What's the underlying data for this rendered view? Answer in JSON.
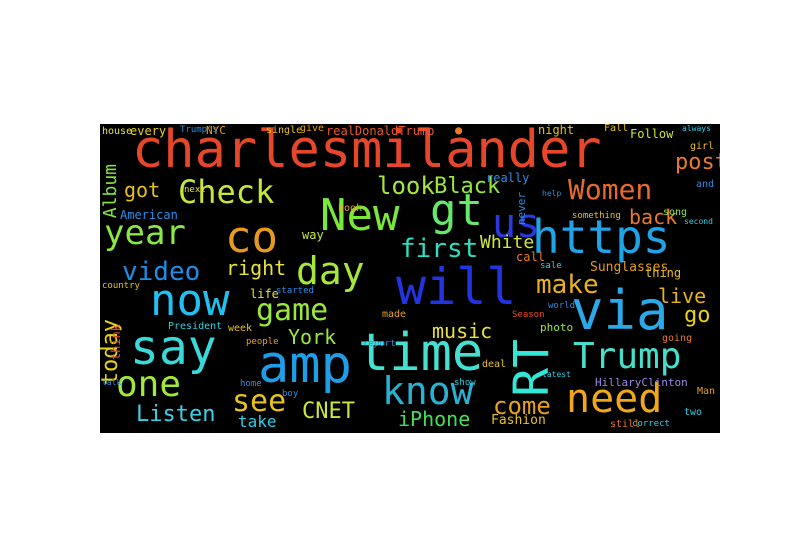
{
  "wordcloud": {
    "words": [
      {
        "text": "charlesmilander",
        "color": "#e8462a"
      },
      {
        "text": "https",
        "color": "#1fa4e8"
      },
      {
        "text": "amp",
        "color": "#1f9ee8"
      },
      {
        "text": "time",
        "color": "#44e0d0"
      },
      {
        "text": "will",
        "color": "#2233e0"
      },
      {
        "text": "via",
        "color": "#2aa8e8"
      },
      {
        "text": "say",
        "color": "#3ad8d8"
      },
      {
        "text": "now",
        "color": "#22c0f0"
      },
      {
        "text": "New",
        "color": "#7ae83a"
      },
      {
        "text": "RT",
        "color": "#33e6d6"
      },
      {
        "text": "co",
        "color": "#e89a1f"
      },
      {
        "text": "gt",
        "color": "#66e86a"
      },
      {
        "text": "need",
        "color": "#f0a81a"
      },
      {
        "text": "Trump",
        "color": "#44e0cc"
      },
      {
        "text": "know",
        "color": "#2ab0d0"
      },
      {
        "text": "day",
        "color": "#a6e83a"
      },
      {
        "text": "one",
        "color": "#a0e83a"
      },
      {
        "text": "year",
        "color": "#88e844"
      },
      {
        "text": "Check",
        "color": "#c2e83a"
      },
      {
        "text": "Women",
        "color": "#e86a2a"
      },
      {
        "text": "game",
        "color": "#9ae83a"
      },
      {
        "text": "video",
        "color": "#1f8ee8"
      },
      {
        "text": "first",
        "color": "#2ae0c0"
      },
      {
        "text": "make",
        "color": "#e8b21a"
      },
      {
        "text": "us",
        "color": "#2a3ae0"
      },
      {
        "text": "see",
        "color": "#e8c21a"
      },
      {
        "text": "look",
        "color": "#a8e83a"
      },
      {
        "text": "Black",
        "color": "#98e83a"
      },
      {
        "text": "come",
        "color": "#e8a01a"
      },
      {
        "text": "Listen",
        "color": "#3ad0e8"
      },
      {
        "text": "CNET",
        "color": "#c8e83a"
      },
      {
        "text": "iPhone",
        "color": "#44e05a"
      },
      {
        "text": "post",
        "color": "#e87a2a"
      },
      {
        "text": "back",
        "color": "#e87a2a"
      },
      {
        "text": "live",
        "color": "#e8b21a"
      },
      {
        "text": "right",
        "color": "#e8e23a"
      },
      {
        "text": "music",
        "color": "#e8e23a"
      },
      {
        "text": "York",
        "color": "#9ae83a"
      },
      {
        "text": "White",
        "color": "#d0e83a"
      },
      {
        "text": "got",
        "color": "#e8c21a"
      },
      {
        "text": "today",
        "color": "#e8d21a"
      },
      {
        "text": "Album",
        "color": "#88e844"
      },
      {
        "text": "go",
        "color": "#e8d21a"
      },
      {
        "text": "take",
        "color": "#2ad0e8"
      },
      {
        "text": "Sunglasses",
        "color": "#e89a1a"
      },
      {
        "text": "Fashion",
        "color": "#e8c21a"
      },
      {
        "text": "HillaryClinton",
        "color": "#9a8ae8"
      },
      {
        "text": "realDonaldTrump",
        "color": "#e85a2a"
      },
      {
        "text": "NYC",
        "color": "#e8a01a"
      },
      {
        "text": "every",
        "color": "#e8d21a"
      },
      {
        "text": "Follow",
        "color": "#c8e83a"
      },
      {
        "text": "night",
        "color": "#e8c21a"
      },
      {
        "text": "really",
        "color": "#2a8ee8"
      },
      {
        "text": "American",
        "color": "#2a8ee8"
      },
      {
        "text": "thing",
        "color": "#e8c21a"
      },
      {
        "text": "life",
        "color": "#e8e23a"
      },
      {
        "text": "President",
        "color": "#2ad0e8"
      },
      {
        "text": "week",
        "color": "#e8c21a"
      },
      {
        "text": "think",
        "color": "#e84a2a"
      },
      {
        "text": "way",
        "color": "#c8e83a"
      },
      {
        "text": "made",
        "color": "#e8a01a"
      },
      {
        "text": "people",
        "color": "#e8a01a"
      },
      {
        "text": "call",
        "color": "#e87a2a"
      },
      {
        "text": "book",
        "color": "#e8a01a"
      },
      {
        "text": "never",
        "color": "#2a8ee8"
      },
      {
        "text": "deal",
        "color": "#e8c21a"
      },
      {
        "text": "photo",
        "color": "#9ae83a"
      },
      {
        "text": "Man",
        "color": "#e8a01a"
      },
      {
        "text": "two",
        "color": "#2ad0e8"
      },
      {
        "text": "going",
        "color": "#e87a2a"
      },
      {
        "text": "sale",
        "color": "#2ad0e8"
      },
      {
        "text": "song",
        "color": "#88e844"
      },
      {
        "text": "world",
        "color": "#2a8ee8"
      },
      {
        "text": "girl",
        "color": "#e8c21a"
      },
      {
        "text": "home",
        "color": "#2a8ee8"
      },
      {
        "text": "boy",
        "color": "#2a8ee8"
      },
      {
        "text": "Season",
        "color": "#e84a2a"
      },
      {
        "text": "report",
        "color": "#2a8ee8"
      },
      {
        "text": "single",
        "color": "#e8c21a"
      },
      {
        "text": "give",
        "color": "#e8a01a"
      },
      {
        "text": "house",
        "color": "#e8e23a"
      },
      {
        "text": "always",
        "color": "#2ad0e8"
      },
      {
        "text": "Fall",
        "color": "#e8c21a"
      },
      {
        "text": "Trump's",
        "color": "#2a8ee8"
      },
      {
        "text": "second",
        "color": "#2ad0e8"
      },
      {
        "text": "country",
        "color": "#e8c21a"
      },
      {
        "text": "next",
        "color": "#e8e23a"
      },
      {
        "text": "started",
        "color": "#2a8ee8"
      },
      {
        "text": "talk",
        "color": "#2a8ee8"
      },
      {
        "text": "latest",
        "color": "#2ad0e8"
      },
      {
        "text": "something",
        "color": "#e8c21a"
      },
      {
        "text": "show",
        "color": "#2ad0e8"
      },
      {
        "text": "help",
        "color": "#2a8ee8"
      },
      {
        "text": "still",
        "color": "#e87a2a"
      },
      {
        "text": "correct",
        "color": "#2ad0e8"
      },
      {
        "text": "and",
        "color": "#2a8ee8"
      }
    ]
  }
}
